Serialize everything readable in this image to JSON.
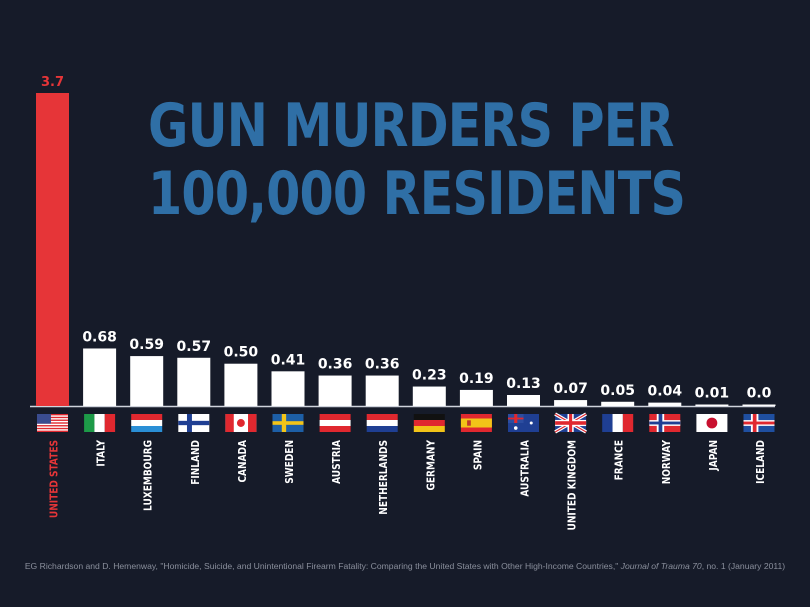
{
  "chart_data": {
    "type": "bar",
    "title": "GUN MURDERS PER 100,000 RESIDENTS",
    "title_lines": [
      "GUN MURDERS PER",
      "100,000 RESIDENTS"
    ],
    "categories": [
      "UNITED STATES",
      "ITALY",
      "LUXEMBOURG",
      "FINLAND",
      "CANADA",
      "SWEDEN",
      "AUSTRIA",
      "NETHERLANDS",
      "GERMANY",
      "SPAIN",
      "AUSTRALIA",
      "UNITED KINGDOM",
      "FRANCE",
      "NORWAY",
      "JAPAN",
      "ICELAND"
    ],
    "values": [
      3.7,
      0.68,
      0.59,
      0.57,
      0.5,
      0.41,
      0.36,
      0.36,
      0.23,
      0.19,
      0.13,
      0.07,
      0.05,
      0.04,
      0.01,
      0.0
    ],
    "value_labels": [
      "3.7",
      "0.68",
      "0.59",
      "0.57",
      "0.50",
      "0.41",
      "0.36",
      "0.36",
      "0.23",
      "0.19",
      "0.13",
      "0.07",
      "0.05",
      "0.04",
      "0.01",
      "0.0"
    ],
    "ylim": [
      0,
      3.7
    ],
    "grid": false,
    "colors": {
      "highlight": "#e63538",
      "bars": "#ffffff",
      "title": "#2f6fa6",
      "background": "#161b29"
    },
    "icons": [
      "flag-us",
      "flag-it",
      "flag-lu",
      "flag-fi",
      "flag-ca",
      "flag-se",
      "flag-at",
      "flag-nl",
      "flag-de",
      "flag-es",
      "flag-au",
      "flag-gb",
      "flag-fr",
      "flag-no",
      "flag-jp",
      "flag-is"
    ]
  },
  "source": {
    "text": "EG Richardson and D. Hemenway, \"Homicide, Suicide, and Unintentional Firearm Fatality: Comparing the United States with Other High-Income Countries,\" ",
    "journal": "Journal of Trauma 70",
    "tail": ", no. 1 (January 2011)"
  }
}
